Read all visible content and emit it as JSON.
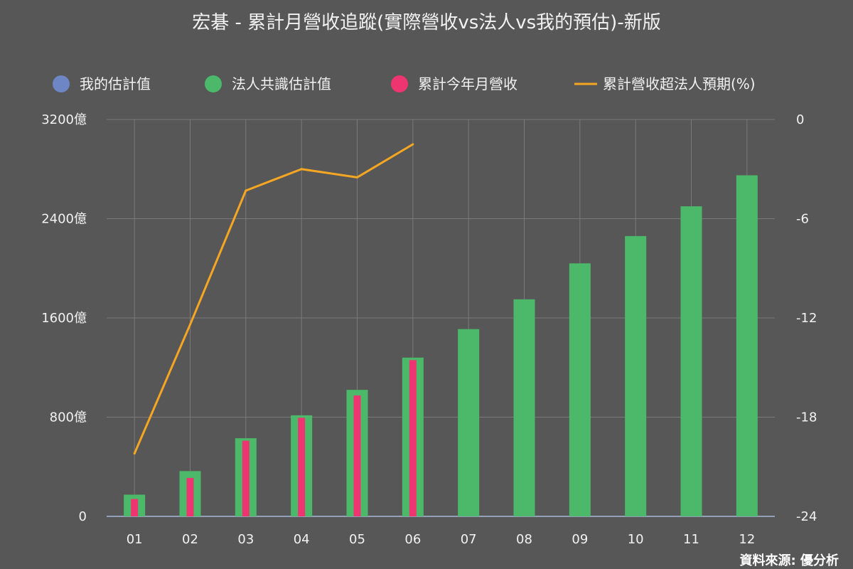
{
  "chart_data": {
    "type": "bar",
    "title": "宏碁 - 累計月營收追蹤(實際營收vs法人vs我的預估)-新版",
    "source": "資料來源: 優分析",
    "categories": [
      "01",
      "02",
      "03",
      "04",
      "05",
      "06",
      "07",
      "08",
      "09",
      "10",
      "11",
      "12"
    ],
    "legend": {
      "placement": "top",
      "items": [
        {
          "name": "我的估計值",
          "color": "#6f86c6",
          "marker": "circle"
        },
        {
          "name": "法人共識估計值",
          "color": "#4cb86a",
          "marker": "circle"
        },
        {
          "name": "累計今年月營收",
          "color": "#ef3472",
          "marker": "circle"
        },
        {
          "name": "累計營收超法人預期(%)",
          "color": "#f5a623",
          "marker": "line"
        }
      ]
    },
    "series": [
      {
        "name": "我的估計值",
        "type": "bar",
        "color": "#6f86c6",
        "values": [
          null,
          null,
          null,
          null,
          null,
          null,
          null,
          null,
          null,
          null,
          null,
          null
        ]
      },
      {
        "name": "法人共識估計值",
        "type": "bar",
        "color": "#4cb86a",
        "values": [
          175,
          365,
          630,
          815,
          1020,
          1280,
          1510,
          1750,
          2040,
          2260,
          2500,
          2750
        ]
      },
      {
        "name": "累計今年月營收",
        "type": "bar",
        "color": "#ef3472",
        "values": [
          140,
          310,
          610,
          795,
          975,
          1260,
          null,
          null,
          null,
          null,
          null,
          null
        ]
      },
      {
        "name": "累計營收超法人預期(%)",
        "type": "line",
        "axis": "right",
        "color": "#f5a623",
        "values": [
          -20.2,
          -12.4,
          -4.3,
          -3.0,
          -3.5,
          -1.5,
          null,
          null,
          null,
          null,
          null,
          null
        ]
      }
    ],
    "y_left": {
      "min": 0,
      "max": 3200,
      "ticks": [
        "0",
        "800億",
        "1600億",
        "2400億",
        "3200億"
      ]
    },
    "y_right": {
      "min": -24,
      "max": 0,
      "ticks": [
        "-24",
        "-18",
        "-12",
        "-6",
        "0"
      ]
    },
    "grid": true,
    "colors": {
      "background": "#575757",
      "grid": "#7a7a7a",
      "axis": "#a8b8d8",
      "text": "#f2f2f2"
    }
  }
}
